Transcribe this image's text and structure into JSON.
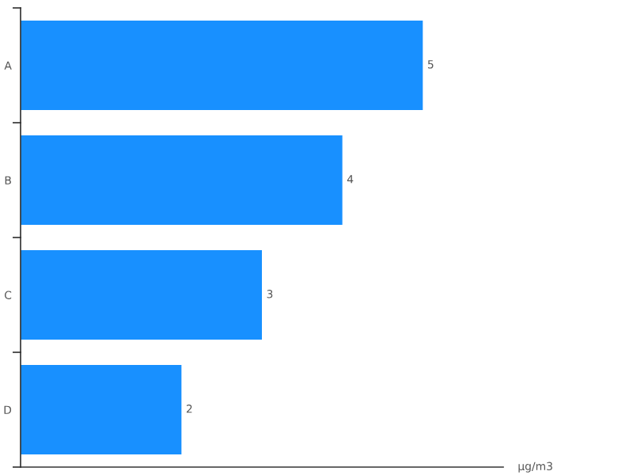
{
  "chart_data": {
    "type": "bar",
    "orientation": "horizontal",
    "categories": [
      "A",
      "B",
      "C",
      "D"
    ],
    "values": [
      5,
      4,
      3,
      2
    ],
    "color": "#1890ff",
    "xlabel": "μg/m3",
    "xlim": [
      0,
      6
    ],
    "data_labels": true,
    "tick_labels": "y",
    "grid": false,
    "legend": false
  }
}
